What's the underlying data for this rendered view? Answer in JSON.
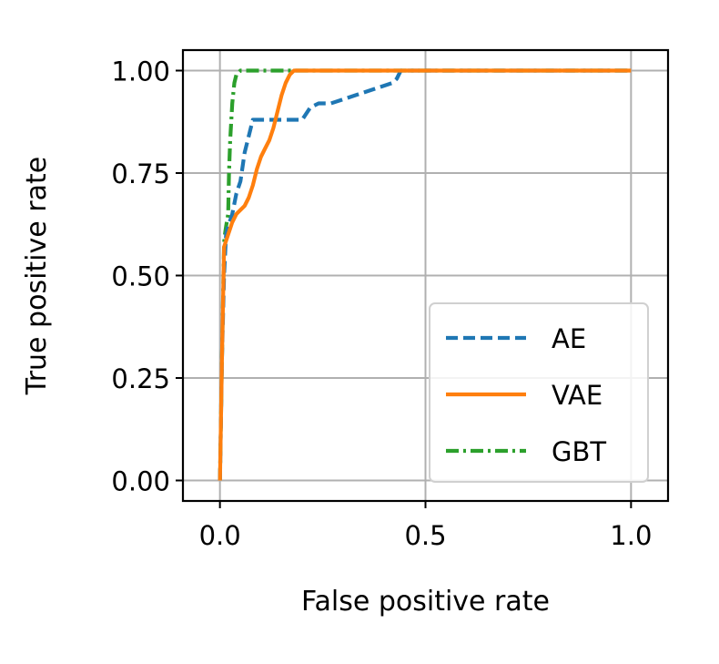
{
  "chart_data": {
    "type": "line",
    "title": "",
    "xlabel": "False positive rate",
    "ylabel": "True positive rate",
    "xlim": [
      -0.09,
      1.09
    ],
    "ylim": [
      -0.05,
      1.05
    ],
    "xticks": [
      0.0,
      0.5,
      1.0
    ],
    "xtick_labels": [
      "0.0",
      "0.5",
      "1.0"
    ],
    "yticks": [
      0.0,
      0.25,
      0.5,
      0.75,
      1.0
    ],
    "ytick_labels": [
      "0.00",
      "0.25",
      "0.50",
      "0.75",
      "1.00"
    ],
    "grid": true,
    "legend_position": "lower-right",
    "series": [
      {
        "name": "AE",
        "color": "#1f77b4",
        "style": "dashed",
        "x": [
          0.0,
          0.005,
          0.01,
          0.015,
          0.02,
          0.03,
          0.04,
          0.05,
          0.06,
          0.07,
          0.08,
          0.1,
          0.12,
          0.14,
          0.17,
          0.2,
          0.22,
          0.24,
          0.27,
          0.3,
          0.33,
          0.36,
          0.39,
          0.42,
          0.43,
          0.44,
          0.5,
          0.7,
          1.0
        ],
        "y": [
          0.0,
          0.3,
          0.5,
          0.6,
          0.62,
          0.65,
          0.7,
          0.73,
          0.8,
          0.84,
          0.88,
          0.88,
          0.88,
          0.88,
          0.88,
          0.88,
          0.91,
          0.92,
          0.92,
          0.93,
          0.94,
          0.95,
          0.96,
          0.97,
          0.98,
          1.0,
          1.0,
          1.0,
          1.0
        ]
      },
      {
        "name": "VAE",
        "color": "#ff7f0e",
        "style": "solid",
        "x": [
          0.0,
          0.005,
          0.01,
          0.02,
          0.03,
          0.04,
          0.05,
          0.06,
          0.07,
          0.08,
          0.09,
          0.1,
          0.11,
          0.12,
          0.13,
          0.14,
          0.15,
          0.16,
          0.17,
          0.18,
          0.19,
          0.2,
          0.3,
          0.5,
          0.7,
          1.0
        ],
        "y": [
          0.0,
          0.3,
          0.57,
          0.6,
          0.63,
          0.65,
          0.66,
          0.67,
          0.69,
          0.72,
          0.76,
          0.79,
          0.81,
          0.83,
          0.86,
          0.9,
          0.94,
          0.97,
          0.99,
          1.0,
          1.0,
          1.0,
          1.0,
          1.0,
          1.0,
          1.0
        ]
      },
      {
        "name": "GBT",
        "color": "#2ca02c",
        "style": "dashdot",
        "x": [
          0.0,
          0.005,
          0.01,
          0.012,
          0.015,
          0.02,
          0.022,
          0.025,
          0.03,
          0.035,
          0.04,
          0.05,
          0.1,
          0.2,
          0.3,
          0.5,
          0.7,
          1.0
        ],
        "y": [
          0.0,
          0.3,
          0.58,
          0.6,
          0.62,
          0.65,
          0.75,
          0.83,
          0.92,
          0.97,
          0.99,
          1.0,
          1.0,
          1.0,
          1.0,
          1.0,
          1.0,
          1.0
        ]
      }
    ]
  }
}
